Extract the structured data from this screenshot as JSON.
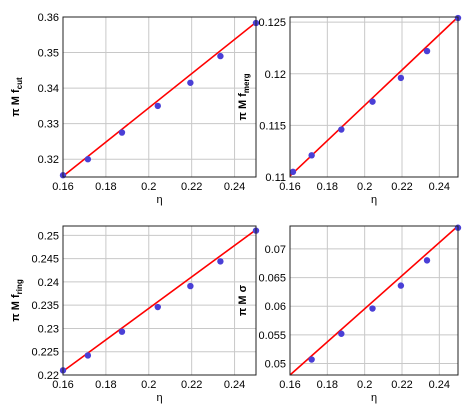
{
  "colors": {
    "line": "#ff0000",
    "marker": "#4a3fd6",
    "grid": "#c8c8c8",
    "frame": "#222222"
  },
  "chart_data": [
    {
      "type": "line",
      "xlabel": "η",
      "ylabel_main": "π M f",
      "ylabel_sub": "cut",
      "xlim": [
        0.16,
        0.25
      ],
      "ylim": [
        0.315,
        0.36
      ],
      "xticks": [
        0.16,
        0.18,
        0.2,
        0.22,
        0.24
      ],
      "xtick_labels": [
        "0.16",
        "0.18",
        "0.2",
        "0.22",
        "0.24"
      ],
      "yticks": [
        0.32,
        0.33,
        0.34,
        0.35,
        0.36
      ],
      "ytick_labels": [
        "0.32",
        "0.33",
        "0.34",
        "0.35",
        "0.36"
      ],
      "grid": true,
      "points": {
        "x": [
          0.16,
          0.1716,
          0.1875,
          0.2042,
          0.2194,
          0.2334,
          0.25
        ],
        "y": [
          0.3155,
          0.32,
          0.3275,
          0.335,
          0.3415,
          0.349,
          0.3583
        ]
      },
      "fit": {
        "x": [
          0.16,
          0.25
        ],
        "y": [
          0.3152,
          0.3585
        ]
      }
    },
    {
      "type": "line",
      "xlabel": "η",
      "ylabel_main": "π M f",
      "ylabel_sub": "merg",
      "xlim": [
        0.16,
        0.25
      ],
      "ylim": [
        0.11,
        0.1255
      ],
      "xticks": [
        0.16,
        0.18,
        0.2,
        0.22,
        0.24
      ],
      "xtick_labels": [
        "0.16",
        "0.18",
        "0.2",
        "0.22",
        "0.24"
      ],
      "yticks": [
        0.11,
        0.115,
        0.12,
        0.125
      ],
      "ytick_labels": [
        "0.11",
        "0.115",
        "0.12",
        "0.125"
      ],
      "grid": true,
      "points": {
        "x": [
          0.1616,
          0.1716,
          0.1875,
          0.2042,
          0.2194,
          0.2334,
          0.25
        ],
        "y": [
          0.1105,
          0.1121,
          0.1146,
          0.1173,
          0.1196,
          0.1222,
          0.1254
        ]
      },
      "fit": {
        "x": [
          0.16,
          0.25
        ],
        "y": [
          0.1101,
          0.1255
        ]
      }
    },
    {
      "type": "line",
      "xlabel": "η",
      "ylabel_main": "π M f",
      "ylabel_sub": "ring",
      "xlim": [
        0.16,
        0.25
      ],
      "ylim": [
        0.22,
        0.252
      ],
      "xticks": [
        0.16,
        0.18,
        0.2,
        0.22,
        0.24
      ],
      "xtick_labels": [
        "0.16",
        "0.18",
        "0.2",
        "0.22",
        "0.24"
      ],
      "yticks": [
        0.22,
        0.225,
        0.23,
        0.235,
        0.24,
        0.245,
        0.25
      ],
      "ytick_labels": [
        "0.22",
        "0.225",
        "0.23",
        "0.235",
        "0.24",
        "0.245",
        "0.25"
      ],
      "grid": true,
      "points": {
        "x": [
          0.16,
          0.1716,
          0.1875,
          0.2042,
          0.2194,
          0.2334,
          0.25
        ],
        "y": [
          0.221,
          0.2242,
          0.2293,
          0.2346,
          0.2391,
          0.2444,
          0.251
        ]
      },
      "fit": {
        "x": [
          0.16,
          0.25
        ],
        "y": [
          0.2208,
          0.2512
        ]
      }
    },
    {
      "type": "line",
      "xlabel": "η",
      "ylabel_main": "π M σ",
      "ylabel_sub": "",
      "xlim": [
        0.16,
        0.25
      ],
      "ylim": [
        0.048,
        0.074
      ],
      "xticks": [
        0.16,
        0.18,
        0.2,
        0.22,
        0.24
      ],
      "xtick_labels": [
        "0.16",
        "0.18",
        "0.2",
        "0.22",
        "0.24"
      ],
      "yticks": [
        0.05,
        0.055,
        0.06,
        0.065,
        0.07
      ],
      "ytick_labels": [
        "0.05",
        "0.055",
        "0.06",
        "0.065",
        "0.07"
      ],
      "grid": true,
      "points": {
        "x": [
          0.1716,
          0.1875,
          0.2042,
          0.2194,
          0.2334,
          0.25
        ],
        "y": [
          0.0507,
          0.0552,
          0.0596,
          0.0636,
          0.068,
          0.0737
        ]
      },
      "fit": {
        "x": [
          0.16,
          0.25
        ],
        "y": [
          0.048,
          0.074
        ]
      }
    }
  ]
}
